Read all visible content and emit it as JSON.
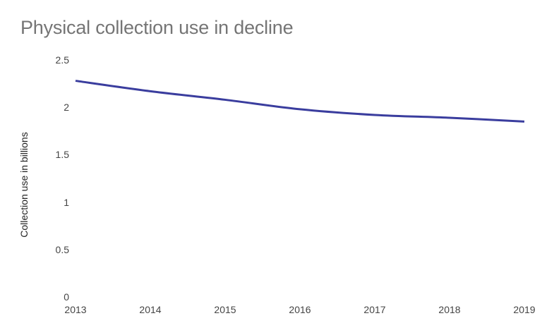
{
  "chart_data": {
    "type": "line",
    "title": "Physical collection use in decline",
    "xlabel": "",
    "ylabel": "Collection use in billions",
    "categories": [
      "2013",
      "2014",
      "2015",
      "2016",
      "2017",
      "2018",
      "2019"
    ],
    "series": [
      {
        "name": "Collection use",
        "values": [
          2.28,
          2.17,
          2.08,
          1.98,
          1.92,
          1.89,
          1.85
        ],
        "color": "#3a3d9e"
      }
    ],
    "yticks": [
      "0",
      "0.5",
      "1",
      "1.5",
      "2",
      "2.5"
    ],
    "ylim": [
      0,
      2.5
    ],
    "grid": false,
    "legend": "none"
  }
}
